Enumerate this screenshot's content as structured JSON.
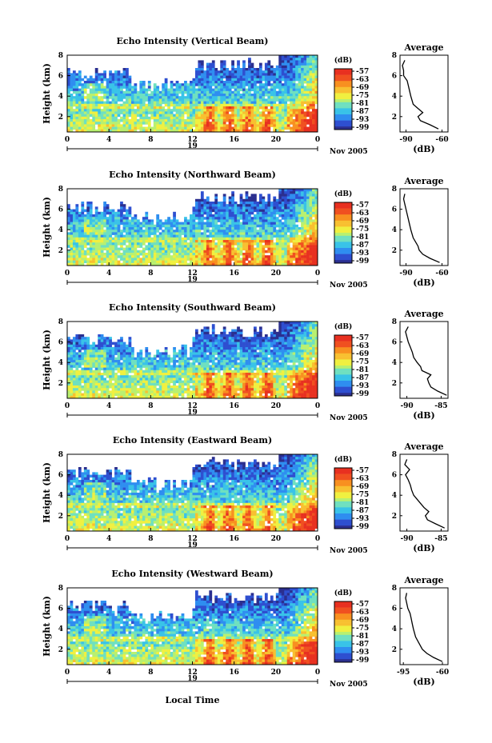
{
  "panels": [
    {
      "title": "Echo Intensity (Vertical Beam)"
    },
    {
      "title": "Echo Intensity (Northward Beam)"
    },
    {
      "title": "Echo Intensity (Southward Beam)"
    },
    {
      "title": "Echo Intensity (Eastward Beam)"
    },
    {
      "title": "Echo Intensity (Westward Beam)"
    }
  ],
  "ylabel": "Height (km)",
  "xlabel": "Local Time",
  "date_label": "Nov 2005",
  "day_label": "19",
  "colorbar_unit": "(dB)",
  "colorbar_ticks": [
    "-57",
    "-63",
    "-69",
    "-75",
    "-81",
    "-87",
    "-93",
    "-99"
  ],
  "avg_title": "Average",
  "avg_xlabel": "(dB)",
  "avg_xticks": [
    [
      "-90",
      "-60"
    ],
    [
      "-90",
      "-60"
    ],
    [
      "-90",
      "-85"
    ],
    [
      "-90",
      "-85"
    ],
    [
      "-95",
      "-60"
    ]
  ],
  "colors": {
    "scale": [
      "#2b2f8f",
      "#2e4fd0",
      "#2f8ef0",
      "#39c3e8",
      "#6fe0c0",
      "#b8f070",
      "#f0f040",
      "#f8c030",
      "#f89020",
      "#f05020",
      "#e83020"
    ]
  },
  "chart_data": [
    {
      "type": "heatmap",
      "title": "Echo Intensity (Vertical Beam)",
      "xlabel": "",
      "ylabel": "Height (km)",
      "x_ticks": [
        "0",
        "4",
        "8",
        "12",
        "16",
        "20",
        "0"
      ],
      "y_ticks": [
        "2",
        "4",
        "6",
        "8"
      ],
      "xlim": [
        0,
        24
      ],
      "ylim": [
        0.5,
        8
      ],
      "colorbar": {
        "unit": "(dB)",
        "range": [
          -99,
          -57
        ]
      },
      "average_profile": {
        "title": "Average",
        "xlabel": "(dB)",
        "xlim": [
          -95,
          -55
        ],
        "x_ticks": [
          "-90",
          "-60"
        ],
        "y_ticks": [
          "2",
          "4",
          "6",
          "8"
        ],
        "height": [
          0.8,
          1.2,
          1.6,
          2.0,
          2.4,
          2.8,
          3.2,
          3.6,
          4.0,
          4.5,
          5.0,
          5.5,
          6.0,
          6.5,
          7.0,
          7.5
        ],
        "db": [
          -63,
          -70,
          -78,
          -80,
          -76,
          -80,
          -84,
          -85,
          -86,
          -87,
          -88,
          -89,
          -92,
          -92,
          -93,
          -91
        ]
      }
    },
    {
      "type": "heatmap",
      "title": "Echo Intensity (Northward Beam)",
      "xlabel": "",
      "ylabel": "Height (km)",
      "x_ticks": [
        "0",
        "4",
        "8",
        "12",
        "16",
        "20",
        "0"
      ],
      "y_ticks": [
        "2",
        "4",
        "6",
        "8"
      ],
      "xlim": [
        0,
        24
      ],
      "ylim": [
        0.5,
        8
      ],
      "colorbar": {
        "unit": "(dB)",
        "range": [
          -99,
          -57
        ]
      },
      "average_profile": {
        "title": "Average",
        "xlabel": "(dB)",
        "xlim": [
          -95,
          -55
        ],
        "x_ticks": [
          "-90",
          "-60"
        ],
        "y_ticks": [
          "2",
          "4",
          "6",
          "8"
        ],
        "height": [
          0.8,
          1.2,
          1.6,
          2.0,
          2.4,
          2.8,
          3.2,
          3.6,
          4.0,
          4.5,
          5.0,
          5.5,
          6.0,
          6.5,
          7.0,
          7.5
        ],
        "db": [
          -62,
          -70,
          -76,
          -79,
          -80,
          -82,
          -84,
          -85,
          -86,
          -87,
          -88,
          -89,
          -90,
          -91,
          -92,
          -91
        ]
      }
    },
    {
      "type": "heatmap",
      "title": "Echo Intensity (Southward Beam)",
      "xlabel": "",
      "ylabel": "Height (km)",
      "x_ticks": [
        "0",
        "4",
        "8",
        "12",
        "16",
        "20",
        "0"
      ],
      "y_ticks": [
        "2",
        "4",
        "6",
        "8"
      ],
      "xlim": [
        0,
        24
      ],
      "ylim": [
        0.5,
        8
      ],
      "colorbar": {
        "unit": "(dB)",
        "range": [
          -99,
          -57
        ]
      },
      "average_profile": {
        "title": "Average",
        "xlabel": "(dB)",
        "xlim": [
          -91,
          -84
        ],
        "x_ticks": [
          "-90",
          "-85"
        ],
        "y_ticks": [
          "2",
          "4",
          "6",
          "8"
        ],
        "height": [
          0.8,
          1.2,
          1.6,
          2.0,
          2.4,
          2.8,
          3.2,
          3.6,
          4.0,
          4.5,
          5.0,
          5.5,
          6.0,
          6.5,
          7.0,
          7.5
        ],
        "db": [
          -84.2,
          -85.5,
          -86.5,
          -86.8,
          -87.0,
          -86.5,
          -87.8,
          -88.0,
          -88.5,
          -89.0,
          -89.2,
          -89.5,
          -89.8,
          -90.0,
          -90.2,
          -89.8
        ]
      }
    },
    {
      "type": "heatmap",
      "title": "Echo Intensity (Eastward Beam)",
      "xlabel": "",
      "ylabel": "Height (km)",
      "x_ticks": [
        "0",
        "4",
        "8",
        "12",
        "16",
        "20",
        "0"
      ],
      "y_ticks": [
        "2",
        "4",
        "6",
        "8"
      ],
      "xlim": [
        0,
        24
      ],
      "ylim": [
        0.5,
        8
      ],
      "colorbar": {
        "unit": "(dB)",
        "range": [
          -99,
          -57
        ]
      },
      "average_profile": {
        "title": "Average",
        "xlabel": "(dB)",
        "xlim": [
          -91,
          -84
        ],
        "x_ticks": [
          "-90",
          "-85"
        ],
        "y_ticks": [
          "2",
          "4",
          "6",
          "8"
        ],
        "height": [
          0.8,
          1.2,
          1.6,
          2.0,
          2.4,
          2.8,
          3.2,
          3.6,
          4.0,
          4.5,
          5.0,
          5.5,
          6.0,
          6.5,
          7.0,
          7.5
        ],
        "db": [
          -84.5,
          -85.8,
          -87.0,
          -87.3,
          -86.8,
          -87.5,
          -88.0,
          -88.5,
          -89.0,
          -89.3,
          -89.5,
          -89.8,
          -90.2,
          -89.6,
          -90.3,
          -90.0
        ]
      }
    },
    {
      "type": "heatmap",
      "title": "Echo Intensity (Westward Beam)",
      "xlabel": "Local Time",
      "ylabel": "Height (km)",
      "x_ticks": [
        "0",
        "4",
        "8",
        "12",
        "16",
        "20",
        "0"
      ],
      "y_ticks": [
        "2",
        "4",
        "6",
        "8"
      ],
      "xlim": [
        0,
        24
      ],
      "ylim": [
        0.5,
        8
      ],
      "colorbar": {
        "unit": "(dB)",
        "range": [
          -99,
          -57
        ]
      },
      "average_profile": {
        "title": "Average",
        "xlabel": "(dB)",
        "xlim": [
          -98,
          -55
        ],
        "x_ticks": [
          "-95",
          "-60"
        ],
        "y_ticks": [
          "2",
          "4",
          "6",
          "8"
        ],
        "height": [
          0.8,
          1.2,
          1.6,
          2.0,
          2.4,
          2.8,
          3.2,
          3.6,
          4.0,
          4.5,
          5.0,
          5.5,
          6.0,
          6.5,
          7.0,
          7.5
        ],
        "db": [
          -60,
          -68,
          -74,
          -78,
          -80,
          -82,
          -84,
          -85,
          -86,
          -87,
          -88,
          -89,
          -91,
          -92,
          -93,
          -92
        ]
      }
    }
  ]
}
